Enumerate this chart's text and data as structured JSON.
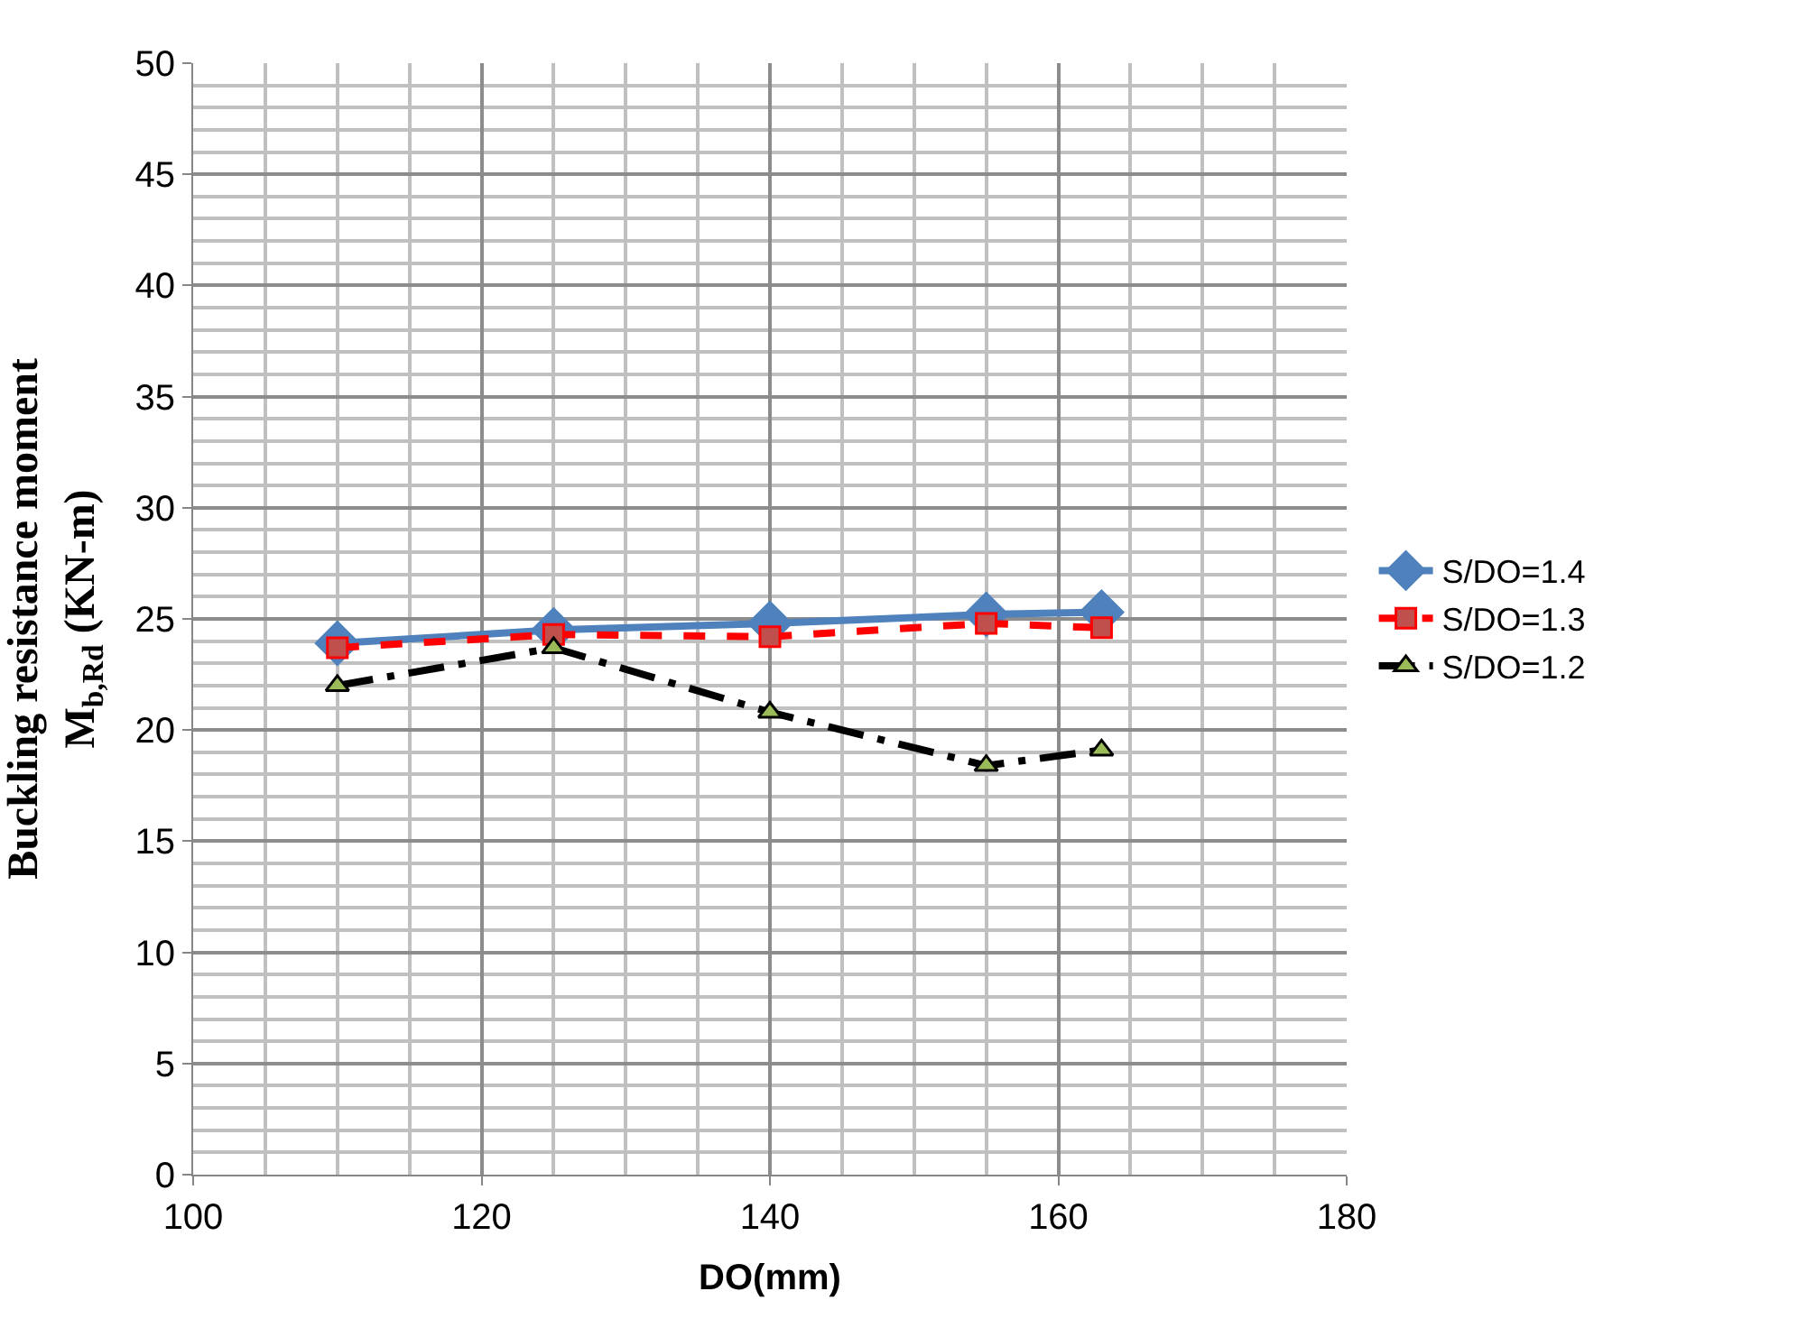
{
  "chart_data": {
    "type": "line",
    "xlabel": "DO(mm)",
    "ylabel": "Buckling resistance moment\nM$_{b,Rd}$ (KN-m)",
    "x": [
      110,
      125,
      140,
      155,
      163
    ],
    "xlim": [
      100,
      180
    ],
    "xticks": [
      100,
      120,
      140,
      160,
      180
    ],
    "ylim": [
      0,
      50
    ],
    "yticks": [
      0,
      5,
      10,
      15,
      20,
      25,
      30,
      35,
      40,
      45,
      50
    ],
    "grid": true,
    "legend": "right",
    "series": [
      {
        "name": "S/DO=1.4",
        "color": "#4f81bd",
        "marker": "diamond",
        "line_style": "solid",
        "values": [
          23.9,
          24.5,
          24.8,
          25.2,
          25.3
        ]
      },
      {
        "name": "S/DO=1.3",
        "color": "#ff0000",
        "marker": "square",
        "line_style": "dashed",
        "values": [
          23.7,
          24.3,
          24.2,
          24.8,
          24.6
        ]
      },
      {
        "name": "S/DO=1.2",
        "color": "#000000",
        "marker": "triangle",
        "line_style": "dashdot",
        "values": [
          22.0,
          23.7,
          20.8,
          18.4,
          19.1
        ]
      }
    ]
  }
}
